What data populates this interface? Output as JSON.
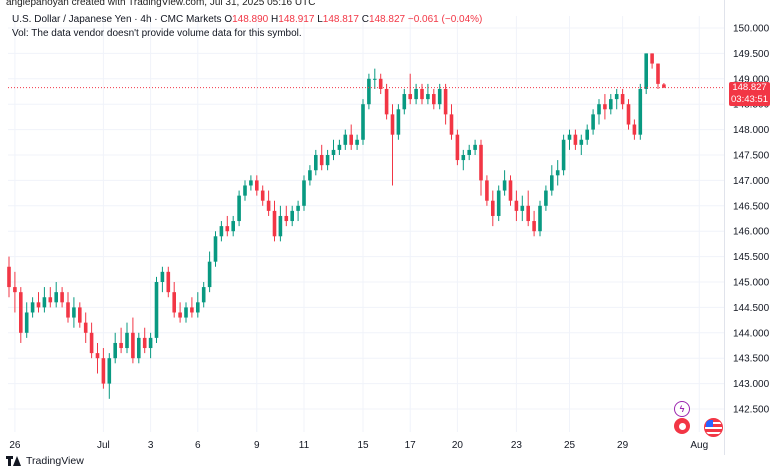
{
  "header": {
    "credit": "anglepanoyan created with TradingView.com, Jul 31, 2025 05:16 UTC",
    "symbol": "U.S. Dollar / Japanese Yen · 4h · CMC Markets",
    "o_label": "O",
    "o_value": "148.890",
    "h_label": "H",
    "h_value": "148.917",
    "l_label": "L",
    "l_value": "148.817",
    "c_label": "C",
    "c_value": "148.827",
    "change": "−0.061 (−0.04%)",
    "volume_note": "Vol: The data vendor doesn't provide volume data for this symbol."
  },
  "price_tag": {
    "price": "148.827",
    "countdown": "03:43:51"
  },
  "footer": {
    "brand": "TradingView"
  },
  "colors": {
    "up": "#089981",
    "down": "#f23645",
    "grid": "#f0f3fa",
    "axis_text": "#131722"
  },
  "icons": {
    "event1": "lightning-icon",
    "event2": "japan-flag-icon",
    "event3": "us-flag-icon"
  },
  "chart_data": {
    "type": "candlestick",
    "title": "U.S. Dollar / Japanese Yen · 4h · CMC Markets",
    "y_axis": {
      "position": "right",
      "ylim": [
        142.3,
        150.3
      ],
      "ticks": [
        "142.500",
        "143.000",
        "143.500",
        "144.000",
        "144.500",
        "145.000",
        "145.500",
        "146.000",
        "146.500",
        "147.000",
        "147.500",
        "148.000",
        "148.500",
        "149.000",
        "149.500",
        "150.000"
      ]
    },
    "x_axis": {
      "ticks": [
        {
          "label": "26",
          "bar": 1
        },
        {
          "label": "Jul",
          "bar": 16
        },
        {
          "label": "3",
          "bar": 24
        },
        {
          "label": "6",
          "bar": 32
        },
        {
          "label": "9",
          "bar": 42
        },
        {
          "label": "11",
          "bar": 50
        },
        {
          "label": "15",
          "bar": 60
        },
        {
          "label": "17",
          "bar": 68
        },
        {
          "label": "20",
          "bar": 76
        },
        {
          "label": "23",
          "bar": 86
        },
        {
          "label": "25",
          "bar": 95
        },
        {
          "label": "29",
          "bar": 104
        },
        {
          "label": "Aug",
          "bar": 117
        }
      ]
    },
    "last_price": 148.827,
    "grid": true,
    "candles": [
      [
        145.3,
        145.5,
        144.7,
        144.9
      ],
      [
        144.9,
        145.2,
        144.4,
        144.8
      ],
      [
        144.8,
        144.9,
        143.8,
        144.0
      ],
      [
        144.0,
        144.6,
        143.9,
        144.4
      ],
      [
        144.4,
        144.7,
        144.3,
        144.6
      ],
      [
        144.6,
        144.8,
        144.4,
        144.5
      ],
      [
        144.5,
        144.9,
        144.4,
        144.7
      ],
      [
        144.7,
        144.9,
        144.5,
        144.6
      ],
      [
        144.6,
        145.0,
        144.5,
        144.8
      ],
      [
        144.8,
        144.9,
        144.5,
        144.6
      ],
      [
        144.6,
        144.8,
        144.2,
        144.3
      ],
      [
        144.3,
        144.7,
        144.1,
        144.5
      ],
      [
        144.5,
        144.6,
        144.1,
        144.2
      ],
      [
        144.2,
        144.4,
        143.8,
        144.0
      ],
      [
        144.0,
        144.2,
        143.5,
        143.6
      ],
      [
        143.6,
        143.8,
        143.2,
        143.5
      ],
      [
        143.5,
        143.7,
        142.9,
        143.0
      ],
      [
        143.0,
        143.6,
        142.7,
        143.5
      ],
      [
        143.5,
        144.0,
        143.4,
        143.8
      ],
      [
        143.8,
        144.1,
        143.6,
        143.7
      ],
      [
        143.7,
        144.2,
        143.6,
        144.0
      ],
      [
        144.0,
        144.3,
        143.4,
        143.5
      ],
      [
        143.5,
        144.0,
        143.4,
        143.9
      ],
      [
        143.9,
        144.1,
        143.6,
        143.7
      ],
      [
        143.7,
        144.0,
        143.5,
        143.9
      ],
      [
        143.9,
        145.1,
        143.8,
        145.0
      ],
      [
        145.0,
        145.3,
        144.8,
        145.2
      ],
      [
        145.2,
        145.3,
        144.7,
        144.8
      ],
      [
        144.8,
        145.0,
        144.3,
        144.4
      ],
      [
        144.4,
        144.6,
        144.2,
        144.3
      ],
      [
        144.3,
        144.6,
        144.2,
        144.5
      ],
      [
        144.5,
        144.7,
        144.3,
        144.4
      ],
      [
        144.4,
        144.8,
        144.3,
        144.6
      ],
      [
        144.6,
        145.0,
        144.5,
        144.9
      ],
      [
        144.9,
        145.6,
        144.8,
        145.4
      ],
      [
        145.4,
        146.0,
        145.3,
        145.9
      ],
      [
        145.9,
        146.2,
        145.8,
        146.1
      ],
      [
        146.1,
        146.3,
        145.9,
        146.0
      ],
      [
        146.0,
        146.3,
        145.9,
        146.2
      ],
      [
        146.2,
        146.8,
        146.1,
        146.7
      ],
      [
        146.7,
        147.0,
        146.6,
        146.9
      ],
      [
        146.9,
        147.1,
        146.8,
        147.0
      ],
      [
        147.0,
        147.1,
        146.7,
        146.8
      ],
      [
        146.8,
        146.9,
        146.5,
        146.6
      ],
      [
        146.6,
        146.8,
        146.3,
        146.4
      ],
      [
        146.4,
        146.6,
        145.8,
        145.9
      ],
      [
        145.9,
        146.5,
        145.8,
        146.3
      ],
      [
        146.3,
        146.5,
        146.1,
        146.2
      ],
      [
        146.2,
        146.5,
        146.1,
        146.4
      ],
      [
        146.4,
        146.6,
        146.2,
        146.5
      ],
      [
        146.5,
        147.1,
        146.4,
        147.0
      ],
      [
        147.0,
        147.3,
        146.9,
        147.2
      ],
      [
        147.2,
        147.6,
        147.1,
        147.5
      ],
      [
        147.5,
        147.7,
        147.2,
        147.3
      ],
      [
        147.3,
        147.6,
        147.2,
        147.5
      ],
      [
        147.5,
        147.8,
        147.4,
        147.6
      ],
      [
        147.6,
        147.8,
        147.5,
        147.7
      ],
      [
        147.7,
        148.0,
        147.6,
        147.9
      ],
      [
        147.9,
        148.1,
        147.6,
        147.7
      ],
      [
        147.7,
        147.9,
        147.6,
        147.8
      ],
      [
        147.8,
        148.6,
        147.7,
        148.5
      ],
      [
        148.5,
        149.1,
        148.4,
        149.0
      ],
      [
        149.0,
        149.2,
        148.8,
        149.0
      ],
      [
        149.0,
        149.1,
        148.7,
        148.8
      ],
      [
        148.8,
        148.9,
        148.2,
        148.3
      ],
      [
        148.3,
        148.5,
        146.9,
        147.9
      ],
      [
        147.9,
        148.5,
        147.8,
        148.4
      ],
      [
        148.4,
        148.8,
        148.3,
        148.7
      ],
      [
        148.7,
        149.1,
        148.5,
        148.6
      ],
      [
        148.6,
        148.9,
        148.5,
        148.8
      ],
      [
        148.8,
        148.9,
        148.5,
        148.6
      ],
      [
        148.6,
        148.9,
        148.5,
        148.7
      ],
      [
        148.7,
        148.8,
        148.4,
        148.5
      ],
      [
        148.5,
        148.9,
        148.4,
        148.8
      ],
      [
        148.8,
        148.9,
        148.1,
        148.3
      ],
      [
        148.3,
        148.5,
        147.8,
        147.9
      ],
      [
        147.9,
        148.0,
        147.3,
        147.4
      ],
      [
        147.4,
        147.6,
        147.2,
        147.5
      ],
      [
        147.5,
        147.7,
        147.4,
        147.6
      ],
      [
        147.6,
        147.8,
        147.5,
        147.7
      ],
      [
        147.7,
        147.8,
        146.7,
        147.0
      ],
      [
        147.0,
        147.1,
        146.5,
        146.6
      ],
      [
        146.6,
        146.8,
        146.1,
        146.3
      ],
      [
        146.3,
        146.9,
        146.2,
        146.8
      ],
      [
        146.8,
        147.2,
        146.7,
        147.0
      ],
      [
        147.0,
        147.1,
        146.5,
        146.6
      ],
      [
        146.6,
        146.8,
        146.2,
        146.4
      ],
      [
        146.4,
        146.7,
        146.2,
        146.5
      ],
      [
        146.5,
        146.8,
        146.1,
        146.2
      ],
      [
        146.2,
        146.4,
        145.9,
        146.0
      ],
      [
        146.0,
        146.6,
        145.9,
        146.5
      ],
      [
        146.5,
        146.9,
        146.4,
        146.8
      ],
      [
        146.8,
        147.3,
        146.7,
        147.1
      ],
      [
        147.1,
        147.4,
        146.9,
        147.2
      ],
      [
        147.2,
        147.9,
        147.1,
        147.8
      ],
      [
        147.8,
        148.0,
        147.6,
        147.9
      ],
      [
        147.9,
        148.0,
        147.6,
        147.7
      ],
      [
        147.7,
        147.9,
        147.5,
        147.8
      ],
      [
        147.8,
        148.1,
        147.7,
        148.0
      ],
      [
        148.0,
        148.4,
        147.9,
        148.3
      ],
      [
        148.3,
        148.6,
        148.1,
        148.5
      ],
      [
        148.5,
        148.7,
        148.2,
        148.4
      ],
      [
        148.4,
        148.7,
        148.3,
        148.6
      ],
      [
        148.6,
        148.8,
        148.4,
        148.7
      ],
      [
        148.7,
        148.8,
        148.4,
        148.5
      ],
      [
        148.5,
        148.6,
        148.0,
        148.1
      ],
      [
        148.1,
        148.2,
        147.8,
        147.9
      ],
      [
        147.9,
        148.9,
        147.8,
        148.8
      ],
      [
        148.8,
        149.5,
        148.7,
        149.5
      ],
      [
        149.5,
        149.5,
        149.2,
        149.3
      ],
      [
        149.3,
        149.3,
        148.8,
        148.9
      ],
      [
        148.89,
        148.917,
        148.817,
        148.827
      ]
    ]
  }
}
